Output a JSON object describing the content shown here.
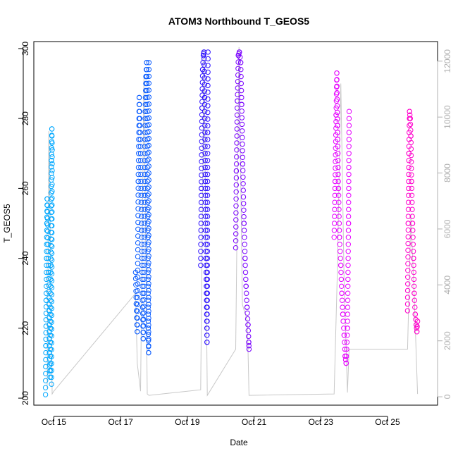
{
  "chart_data": {
    "type": "scatter",
    "title": "ATOM3 Northbound T_GEOS5",
    "xlabel": "Date",
    "ylabel": "T_GEOS5",
    "ylabel_right": "",
    "xlim": [
      14.4,
      26.5
    ],
    "ylim": [
      198,
      302
    ],
    "ylim_right": [
      -300,
      12700
    ],
    "x_ticks": [
      {
        "value": 15,
        "label": "Oct 15"
      },
      {
        "value": 17,
        "label": "Oct 17"
      },
      {
        "value": 19,
        "label": "Oct 19"
      },
      {
        "value": 21,
        "label": "Oct 21"
      },
      {
        "value": 23,
        "label": "Oct 23"
      },
      {
        "value": 25,
        "label": "Oct 25"
      }
    ],
    "y_ticks": [
      200,
      220,
      240,
      260,
      280,
      300
    ],
    "y_ticks_right": [
      0,
      2000,
      4000,
      6000,
      8000,
      10000,
      12000
    ],
    "grid": false,
    "background_line_color": "#c8c8c8",
    "series": [
      {
        "color": "#00a8ff",
        "x_range": [
          14.75,
          14.95
        ],
        "points": [
          [
            14.75,
            201
          ],
          [
            14.76,
            215
          ],
          [
            14.77,
            228
          ],
          [
            14.78,
            240
          ],
          [
            14.79,
            250
          ],
          [
            14.8,
            257
          ],
          [
            14.82,
            244
          ],
          [
            14.84,
            236
          ],
          [
            14.86,
            225
          ],
          [
            14.87,
            213
          ],
          [
            14.89,
            206
          ],
          [
            14.9,
            220
          ],
          [
            14.91,
            238
          ],
          [
            14.92,
            255
          ],
          [
            14.93,
            268
          ],
          [
            14.94,
            277
          ],
          [
            14.95,
            271
          ],
          [
            14.93,
            204
          ]
        ]
      },
      {
        "color": "#0a5cff",
        "x_range": [
          17.45,
          17.85
        ],
        "points": [
          [
            17.45,
            236
          ],
          [
            17.47,
            227
          ],
          [
            17.5,
            219
          ],
          [
            17.53,
            262
          ],
          [
            17.56,
            286
          ],
          [
            17.6,
            270
          ],
          [
            17.63,
            248
          ],
          [
            17.66,
            226
          ],
          [
            17.68,
            217
          ],
          [
            17.7,
            230
          ],
          [
            17.72,
            258
          ],
          [
            17.74,
            282
          ],
          [
            17.76,
            292
          ],
          [
            17.78,
            296
          ],
          [
            17.8,
            280
          ],
          [
            17.82,
            246
          ],
          [
            17.83,
            220
          ],
          [
            17.84,
            213
          ],
          [
            17.85,
            296
          ]
        ]
      },
      {
        "color": "#2e12ff",
        "x_range": [
          19.4,
          19.62
        ],
        "points": [
          [
            19.4,
            238
          ],
          [
            19.42,
            260
          ],
          [
            19.44,
            283
          ],
          [
            19.46,
            294
          ],
          [
            19.48,
            298
          ],
          [
            19.5,
            299
          ],
          [
            19.52,
            286
          ],
          [
            19.54,
            262
          ],
          [
            19.56,
            240
          ],
          [
            19.58,
            226
          ],
          [
            19.59,
            216
          ],
          [
            19.6,
            230
          ],
          [
            19.61,
            276
          ],
          [
            19.62,
            299
          ]
        ]
      },
      {
        "color": "#7a00ff",
        "x_range": [
          20.45,
          20.85
        ],
        "points": [
          [
            20.45,
            243
          ],
          [
            20.47,
            265
          ],
          [
            20.5,
            285
          ],
          [
            20.53,
            298
          ],
          [
            20.56,
            299
          ],
          [
            20.6,
            296
          ],
          [
            20.63,
            284
          ],
          [
            20.66,
            267
          ],
          [
            20.7,
            250
          ],
          [
            20.73,
            240
          ],
          [
            20.76,
            232
          ],
          [
            20.79,
            226
          ],
          [
            20.82,
            221
          ],
          [
            20.84,
            216
          ],
          [
            20.85,
            214
          ]
        ]
      },
      {
        "color": "#e600ff",
        "x_range": [
          23.4,
          23.85
        ],
        "points": [
          [
            23.4,
            246
          ],
          [
            23.43,
            262
          ],
          [
            23.46,
            281
          ],
          [
            23.48,
            293
          ],
          [
            23.5,
            278
          ],
          [
            23.53,
            260
          ],
          [
            23.56,
            246
          ],
          [
            23.6,
            238
          ],
          [
            23.63,
            230
          ],
          [
            23.66,
            224
          ],
          [
            23.7,
            218
          ],
          [
            23.73,
            212
          ],
          [
            23.76,
            210
          ],
          [
            23.8,
            220
          ],
          [
            23.83,
            250
          ],
          [
            23.85,
            282
          ]
        ]
      },
      {
        "color": "#ff00cc",
        "x_range": [
          25.6,
          25.9
        ],
        "points": [
          [
            25.6,
            225
          ],
          [
            25.62,
            250
          ],
          [
            25.64,
            270
          ],
          [
            25.66,
            282
          ],
          [
            25.68,
            280
          ],
          [
            25.7,
            275
          ],
          [
            25.72,
            262
          ],
          [
            25.75,
            250
          ],
          [
            25.78,
            240
          ],
          [
            25.8,
            230
          ],
          [
            25.83,
            224
          ],
          [
            25.86,
            221
          ],
          [
            25.88,
            219
          ],
          [
            25.9,
            222
          ]
        ]
      }
    ],
    "grey_line_points": [
      [
        14.8,
        300
      ],
      [
        14.85,
        9500
      ],
      [
        14.9,
        5200
      ],
      [
        14.95,
        100
      ],
      [
        15.0,
        200
      ],
      [
        17.45,
        3700
      ],
      [
        17.5,
        1200
      ],
      [
        17.6,
        200
      ],
      [
        17.7,
        11400
      ],
      [
        17.8,
        100
      ],
      [
        17.85,
        50
      ],
      [
        19.4,
        250
      ],
      [
        19.5,
        12400
      ],
      [
        19.6,
        50
      ],
      [
        20.45,
        1700
      ],
      [
        20.55,
        12500
      ],
      [
        20.65,
        3300
      ],
      [
        20.8,
        2700
      ],
      [
        20.85,
        50
      ],
      [
        23.4,
        100
      ],
      [
        23.5,
        4600
      ],
      [
        23.6,
        11200
      ],
      [
        23.7,
        4100
      ],
      [
        23.8,
        150
      ],
      [
        23.85,
        1700
      ],
      [
        25.6,
        1700
      ],
      [
        25.7,
        6500
      ],
      [
        25.8,
        3600
      ],
      [
        25.9,
        100
      ]
    ]
  }
}
